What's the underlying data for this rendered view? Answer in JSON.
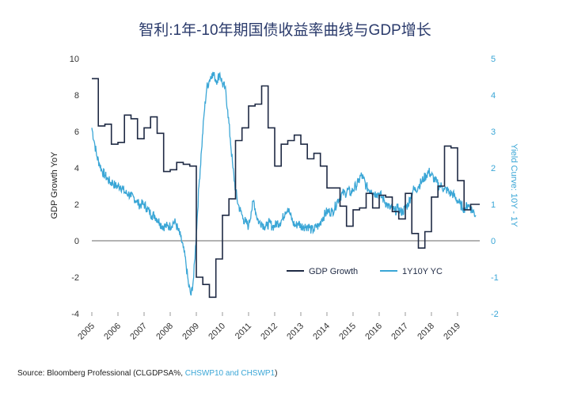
{
  "chart_data": {
    "type": "line",
    "title": "智利:1年-10年期国债收益率曲线与GDP增长",
    "ylabel": "GDP Growth YoY",
    "ylabel_right": "Yield Curve: 10Y - 1Y",
    "x_ticks": [
      "2005",
      "2006",
      "2007",
      "2008",
      "2009",
      "2010",
      "2011",
      "2012",
      "2013",
      "2014",
      "2015",
      "2016",
      "2017",
      "2018",
      "2019"
    ],
    "xlim": [
      2005.0,
      2019.85
    ],
    "ylim": [
      -4,
      10
    ],
    "ylim_right": [
      -2,
      5
    ],
    "y_ticks": [
      "-4",
      "-2",
      "0",
      "2",
      "4",
      "6",
      "8",
      "10"
    ],
    "y_ticks_right": [
      "-2",
      "-1",
      "0",
      "1",
      "2",
      "3",
      "4",
      "5"
    ],
    "legend_position": "lower-right",
    "colors": {
      "gdp": "#1f2a44",
      "yc": "#3aa6d6",
      "zero": "#9a9a9a"
    },
    "series": [
      {
        "name": "GDP Growth",
        "axis": "left",
        "step": true,
        "x": [
          2005.0,
          2005.25,
          2005.5,
          2005.75,
          2006.0,
          2006.25,
          2006.5,
          2006.75,
          2007.0,
          2007.25,
          2007.5,
          2007.75,
          2008.0,
          2008.25,
          2008.5,
          2008.75,
          2009.0,
          2009.25,
          2009.5,
          2009.75,
          2010.0,
          2010.25,
          2010.5,
          2010.75,
          2011.0,
          2011.25,
          2011.5,
          2011.75,
          2012.0,
          2012.25,
          2012.5,
          2012.75,
          2013.0,
          2013.25,
          2013.5,
          2013.75,
          2014.0,
          2014.25,
          2014.5,
          2014.75,
          2015.0,
          2015.25,
          2015.5,
          2015.75,
          2016.0,
          2016.25,
          2016.5,
          2016.75,
          2017.0,
          2017.25,
          2017.5,
          2017.75,
          2018.0,
          2018.25,
          2018.5,
          2018.75,
          2019.0,
          2019.25,
          2019.5
        ],
        "y": [
          8.9,
          6.3,
          6.4,
          5.3,
          5.4,
          6.9,
          6.7,
          5.6,
          6.2,
          6.8,
          5.9,
          3.8,
          3.9,
          4.3,
          4.2,
          4.1,
          -2.0,
          -2.4,
          -3.1,
          -1.0,
          1.4,
          2.3,
          5.5,
          6.2,
          7.4,
          7.5,
          8.5,
          6.2,
          4.1,
          5.3,
          5.5,
          5.8,
          5.3,
          4.5,
          4.8,
          4.1,
          2.9,
          2.9,
          1.9,
          0.8,
          1.7,
          1.8,
          2.6,
          1.8,
          2.5,
          2.4,
          1.6,
          1.2,
          2.6,
          0.4,
          -0.4,
          0.5,
          2.4,
          3.0,
          5.2,
          5.1,
          3.3,
          1.7,
          2.0
        ]
      },
      {
        "name": "1Y10Y YC",
        "axis": "right",
        "step": false,
        "x": [
          2005.0,
          2005.1,
          2005.2,
          2005.3,
          2005.4,
          2005.5,
          2005.6,
          2005.7,
          2005.8,
          2005.9,
          2006.0,
          2006.1,
          2006.2,
          2006.3,
          2006.4,
          2006.5,
          2006.6,
          2006.7,
          2006.8,
          2006.9,
          2007.0,
          2007.1,
          2007.2,
          2007.3,
          2007.4,
          2007.5,
          2007.6,
          2007.7,
          2007.8,
          2007.9,
          2008.0,
          2008.1,
          2008.2,
          2008.3,
          2008.4,
          2008.5,
          2008.6,
          2008.7,
          2008.8,
          2008.9,
          2009.0,
          2009.1,
          2009.2,
          2009.3,
          2009.4,
          2009.5,
          2009.6,
          2009.7,
          2009.8,
          2009.9,
          2010.0,
          2010.1,
          2010.2,
          2010.3,
          2010.4,
          2010.5,
          2010.6,
          2010.7,
          2010.8,
          2010.9,
          2011.0,
          2011.1,
          2011.2,
          2011.3,
          2011.4,
          2011.5,
          2011.6,
          2011.7,
          2011.8,
          2011.9,
          2012.0,
          2012.1,
          2012.2,
          2012.3,
          2012.4,
          2012.5,
          2012.6,
          2012.7,
          2012.8,
          2012.9,
          2013.0,
          2013.1,
          2013.2,
          2013.3,
          2013.4,
          2013.5,
          2013.6,
          2013.7,
          2013.8,
          2013.9,
          2014.0,
          2014.1,
          2014.2,
          2014.3,
          2014.4,
          2014.5,
          2014.6,
          2014.7,
          2014.8,
          2014.9,
          2015.0,
          2015.1,
          2015.2,
          2015.3,
          2015.4,
          2015.5,
          2015.6,
          2015.7,
          2015.8,
          2015.9,
          2016.0,
          2016.1,
          2016.2,
          2016.3,
          2016.4,
          2016.5,
          2016.6,
          2016.7,
          2016.8,
          2016.9,
          2017.0,
          2017.1,
          2017.2,
          2017.3,
          2017.4,
          2017.5,
          2017.6,
          2017.7,
          2017.8,
          2017.9,
          2018.0,
          2018.1,
          2018.2,
          2018.3,
          2018.4,
          2018.5,
          2018.6,
          2018.7,
          2018.8,
          2018.9,
          2019.0,
          2019.1,
          2019.2,
          2019.3,
          2019.4,
          2019.5,
          2019.6,
          2019.7
        ],
        "y": [
          3.1,
          2.7,
          2.3,
          2.1,
          1.9,
          1.8,
          1.7,
          1.6,
          1.6,
          1.5,
          1.5,
          1.5,
          1.4,
          1.3,
          1.3,
          1.2,
          1.2,
          1.1,
          1.0,
          1.0,
          1.0,
          0.9,
          0.8,
          0.7,
          0.7,
          0.6,
          0.5,
          0.4,
          0.4,
          0.4,
          0.4,
          0.5,
          0.5,
          0.3,
          0.1,
          -0.2,
          -0.6,
          -1.2,
          -1.5,
          -1.0,
          0.2,
          1.5,
          2.5,
          3.5,
          4.2,
          4.4,
          4.6,
          4.5,
          4.4,
          4.6,
          4.3,
          4.2,
          3.6,
          2.8,
          2.0,
          1.4,
          1.0,
          0.8,
          0.6,
          0.5,
          0.4,
          0.8,
          1.1,
          0.7,
          0.5,
          0.5,
          0.4,
          0.4,
          0.5,
          0.4,
          0.4,
          0.5,
          0.5,
          0.6,
          0.8,
          0.9,
          0.7,
          0.5,
          0.4,
          0.5,
          0.4,
          0.4,
          0.4,
          0.4,
          0.3,
          0.3,
          0.4,
          0.4,
          0.6,
          0.7,
          0.8,
          0.8,
          0.8,
          0.9,
          1.1,
          1.2,
          1.3,
          1.3,
          1.4,
          1.3,
          1.4,
          1.5,
          1.6,
          1.8,
          1.7,
          1.5,
          1.4,
          1.4,
          1.3,
          1.3,
          1.3,
          1.2,
          1.1,
          1.0,
          0.9,
          0.9,
          0.8,
          0.9,
          0.8,
          0.8,
          0.9,
          1.0,
          1.2,
          1.4,
          1.4,
          1.5,
          1.6,
          1.7,
          1.8,
          1.9,
          1.8,
          1.7,
          1.6,
          1.5,
          1.5,
          1.4,
          1.4,
          1.3,
          1.3,
          1.2,
          1.1,
          1.0,
          0.9,
          0.9,
          1.0,
          0.9,
          0.8,
          0.7
        ]
      }
    ],
    "source_text": "Source: Bloomberg Professional (CLGDPSA%, ",
    "source_tickers": "CHSWP10 and CHSWP1",
    "source_end": ")"
  }
}
